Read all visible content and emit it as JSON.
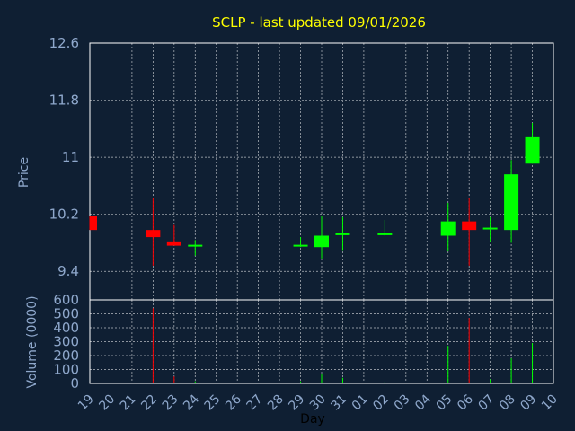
{
  "chart_data": {
    "type": "candlestick",
    "title": "SCLP - last updated 09/01/2026",
    "xlabel": "Day",
    "price_ylabel": "Price",
    "volume_ylabel": "Volume (0000)",
    "categories": [
      "19",
      "20",
      "21",
      "22",
      "23",
      "24",
      "25",
      "26",
      "27",
      "28",
      "29",
      "30",
      "31",
      "01",
      "02",
      "03",
      "04",
      "05",
      "06",
      "07",
      "08",
      "09",
      "10"
    ],
    "price_ylim": [
      9.0,
      12.6
    ],
    "price_ticks": [
      "12.6",
      "11.8",
      "11",
      "10.2",
      "9.4"
    ],
    "volume_ylim": [
      0,
      600
    ],
    "volume_ticks": [
      "600",
      "500",
      "400",
      "300",
      "200",
      "100",
      "0"
    ],
    "candles": [
      {
        "day": "19",
        "open": 10.18,
        "high": 10.18,
        "low": 9.98,
        "close": 9.98,
        "color": "#ff0000"
      },
      {
        "day": "22",
        "open": 9.98,
        "high": 10.43,
        "low": 9.48,
        "close": 9.88,
        "color": "#ff0000"
      },
      {
        "day": "23",
        "open": 9.82,
        "high": 10.05,
        "low": 9.76,
        "close": 9.76,
        "color": "#ff0000"
      },
      {
        "day": "24",
        "open": 9.74,
        "high": 9.84,
        "low": 9.62,
        "close": 9.76,
        "color": "#00ff00"
      },
      {
        "day": "29",
        "open": 9.74,
        "high": 9.88,
        "low": 9.74,
        "close": 9.76,
        "color": "#00ff00"
      },
      {
        "day": "30",
        "open": 9.74,
        "high": 10.18,
        "low": 9.58,
        "close": 9.9,
        "color": "#00ff00"
      },
      {
        "day": "31",
        "open": 9.9,
        "high": 10.16,
        "low": 9.7,
        "close": 9.92,
        "color": "#00ff00"
      },
      {
        "day": "02",
        "open": 9.9,
        "high": 10.12,
        "low": 9.9,
        "close": 9.92,
        "color": "#00ff00"
      },
      {
        "day": "05",
        "open": 9.9,
        "high": 10.36,
        "low": 9.68,
        "close": 10.1,
        "color": "#00ff00"
      },
      {
        "day": "06",
        "open": 10.1,
        "high": 10.43,
        "low": 9.48,
        "close": 9.98,
        "color": "#ff0000"
      },
      {
        "day": "07",
        "open": 9.98,
        "high": 10.16,
        "low": 9.82,
        "close": 10.0,
        "color": "#00ff00"
      },
      {
        "day": "08",
        "open": 9.98,
        "high": 10.96,
        "low": 9.8,
        "close": 10.76,
        "color": "#00ff00"
      },
      {
        "day": "09",
        "open": 10.91,
        "high": 11.48,
        "low": 10.91,
        "close": 11.28,
        "color": "#00ff00"
      }
    ],
    "volume": [
      {
        "day": "19",
        "value": 0,
        "color": "#ff0000"
      },
      {
        "day": "22",
        "value": 540,
        "color": "#ff0000"
      },
      {
        "day": "23",
        "value": 50,
        "color": "#ff0000"
      },
      {
        "day": "24",
        "value": 15,
        "color": "#00ff00"
      },
      {
        "day": "29",
        "value": 15,
        "color": "#00ff00"
      },
      {
        "day": "30",
        "value": 70,
        "color": "#00ff00"
      },
      {
        "day": "31",
        "value": 40,
        "color": "#00ff00"
      },
      {
        "day": "02",
        "value": 10,
        "color": "#00ff00"
      },
      {
        "day": "05",
        "value": 270,
        "color": "#00ff00"
      },
      {
        "day": "06",
        "value": 470,
        "color": "#ff0000"
      },
      {
        "day": "07",
        "value": 30,
        "color": "#00ff00"
      },
      {
        "day": "08",
        "value": 180,
        "color": "#00ff00"
      },
      {
        "day": "09",
        "value": 290,
        "color": "#00ff00"
      }
    ],
    "grid": true,
    "colors": {
      "background": "#0f1f33",
      "title": "#ffff00",
      "axis_text": "#8fa8cc",
      "grid": "#ffffff",
      "up": "#00ff00",
      "down": "#ff0000"
    }
  }
}
